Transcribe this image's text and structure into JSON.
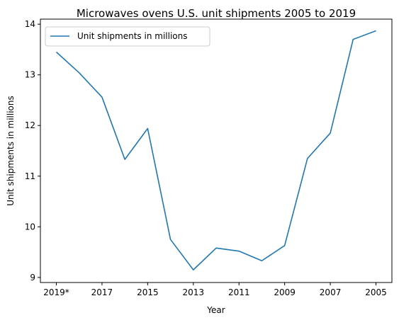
{
  "chart_data": {
    "type": "line",
    "title": "Microwaves ovens U.S. unit shipments 2005 to 2019",
    "xlabel": "Year",
    "ylabel": "Unit shipments in millions",
    "ylim": [
      8.9,
      14.1
    ],
    "yticks": [
      9,
      10,
      11,
      12,
      13,
      14
    ],
    "x_order": "descending (2019* on left, 2005 on right)",
    "x": [
      "2019*",
      "2018",
      "2017",
      "2016",
      "2015",
      "2014",
      "2013",
      "2012",
      "2011",
      "2010",
      "2009",
      "2008",
      "2007",
      "2006",
      "2005"
    ],
    "xtick_labels": [
      "2019*",
      "2017",
      "2015",
      "2013",
      "2011",
      "2009",
      "2007",
      "2005"
    ],
    "series": [
      {
        "name": "Unit shipments in millions",
        "color": "#1f77b4",
        "values": [
          13.45,
          13.04,
          12.56,
          11.33,
          11.94,
          9.75,
          9.15,
          9.58,
          9.52,
          9.33,
          9.63,
          11.35,
          11.85,
          13.7,
          13.87
        ]
      }
    ],
    "legend_position": "top-left",
    "grid": false
  }
}
